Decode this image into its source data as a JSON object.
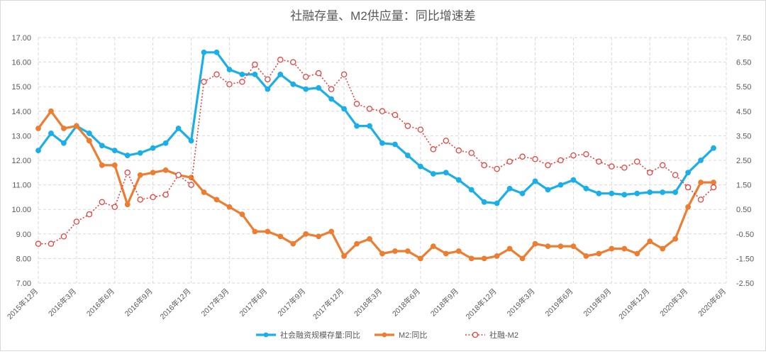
{
  "chart_data": {
    "type": "line",
    "title": "社融存量、M2供应量：同比增速差",
    "x": [
      "2015年12月",
      "2016年1月",
      "2016年2月",
      "2016年3月",
      "2016年4月",
      "2016年5月",
      "2016年6月",
      "2016年7月",
      "2016年8月",
      "2016年9月",
      "2016年10月",
      "2016年11月",
      "2016年12月",
      "2017年1月",
      "2017年2月",
      "2017年3月",
      "2017年4月",
      "2017年5月",
      "2017年6月",
      "2017年7月",
      "2017年8月",
      "2017年9月",
      "2017年10月",
      "2017年11月",
      "2017年12月",
      "2018年1月",
      "2018年2月",
      "2018年3月",
      "2018年4月",
      "2018年5月",
      "2018年6月",
      "2018年7月",
      "2018年8月",
      "2018年9月",
      "2018年10月",
      "2018年11月",
      "2018年12月",
      "2019年1月",
      "2019年2月",
      "2019年3月",
      "2019年4月",
      "2019年5月",
      "2019年6月",
      "2019年7月",
      "2019年8月",
      "2019年9月",
      "2019年10月",
      "2019年11月",
      "2019年12月",
      "2020年1月",
      "2020年2月",
      "2020年3月",
      "2020年4月",
      "2020年5月"
    ],
    "x_tick_labels": [
      "2015年12月",
      "2016年3月",
      "2016年6月",
      "2016年9月",
      "2016年12月",
      "2017年3月",
      "2017年6月",
      "2017年9月",
      "2017年12月",
      "2018年3月",
      "2018年6月",
      "2018年9月",
      "2018年12月",
      "2019年3月",
      "2019年6月",
      "2019年9月",
      "2019年12月",
      "2020年3月",
      "2020年6月"
    ],
    "y_left": {
      "ylim": [
        7.0,
        17.0
      ],
      "ticks": [
        "7.00",
        "8.00",
        "9.00",
        "10.00",
        "11.00",
        "12.00",
        "13.00",
        "14.00",
        "15.00",
        "16.00",
        "17.00"
      ]
    },
    "y_right": {
      "ylim": [
        -2.5,
        7.5
      ],
      "ticks": [
        "-2.50",
        "-1.50",
        "-0.50",
        "0.50",
        "1.50",
        "2.50",
        "3.50",
        "4.50",
        "5.50",
        "6.50",
        "7.50"
      ]
    },
    "grid": true,
    "legend_position": "bottom",
    "series": [
      {
        "name": "社会融资规模存量:同比",
        "axis": "left",
        "style": "solid",
        "color": "#1aafe6",
        "values": [
          12.4,
          13.1,
          12.7,
          13.4,
          13.1,
          12.6,
          12.4,
          12.2,
          12.3,
          12.5,
          12.7,
          13.3,
          12.8,
          16.4,
          16.4,
          15.7,
          15.5,
          15.5,
          14.9,
          15.5,
          15.1,
          14.9,
          14.95,
          14.5,
          14.1,
          13.4,
          13.4,
          12.7,
          12.65,
          12.2,
          11.75,
          11.45,
          11.5,
          11.2,
          10.8,
          10.3,
          10.25,
          10.85,
          10.65,
          11.15,
          10.8,
          11.0,
          11.2,
          10.85,
          10.65,
          10.65,
          10.6,
          10.65,
          10.7,
          10.7,
          10.7,
          11.5,
          12.0,
          12.5
        ]
      },
      {
        "name": "M2:同比",
        "axis": "left",
        "style": "solid",
        "color": "#ed7d31",
        "values": [
          13.3,
          14.0,
          13.3,
          13.4,
          12.8,
          11.8,
          11.8,
          10.2,
          11.4,
          11.5,
          11.6,
          11.4,
          11.3,
          10.7,
          10.4,
          10.1,
          9.8,
          9.1,
          9.1,
          8.9,
          8.6,
          9.0,
          8.9,
          9.1,
          8.1,
          8.6,
          8.8,
          8.2,
          8.3,
          8.3,
          8.0,
          8.5,
          8.2,
          8.3,
          8.0,
          8.0,
          8.1,
          8.4,
          8.0,
          8.6,
          8.5,
          8.5,
          8.5,
          8.1,
          8.2,
          8.4,
          8.4,
          8.2,
          8.7,
          8.4,
          8.8,
          10.1,
          11.1,
          11.1
        ]
      },
      {
        "name": "社融-M2",
        "axis": "right",
        "style": "dotted",
        "color": "#e8423b",
        "values": [
          -0.9,
          -0.9,
          -0.6,
          0.0,
          0.3,
          0.8,
          0.6,
          2.0,
          0.9,
          1.0,
          1.1,
          1.9,
          1.5,
          5.7,
          6.0,
          5.6,
          5.7,
          6.4,
          5.8,
          6.6,
          6.5,
          5.9,
          6.05,
          5.4,
          6.0,
          4.8,
          4.6,
          4.5,
          4.35,
          3.9,
          3.75,
          2.95,
          3.3,
          2.9,
          2.8,
          2.3,
          2.15,
          2.45,
          2.65,
          2.55,
          2.3,
          2.5,
          2.7,
          2.75,
          2.45,
          2.25,
          2.2,
          2.45,
          2.0,
          2.3,
          1.9,
          1.4,
          0.9,
          1.4
        ]
      }
    ]
  }
}
